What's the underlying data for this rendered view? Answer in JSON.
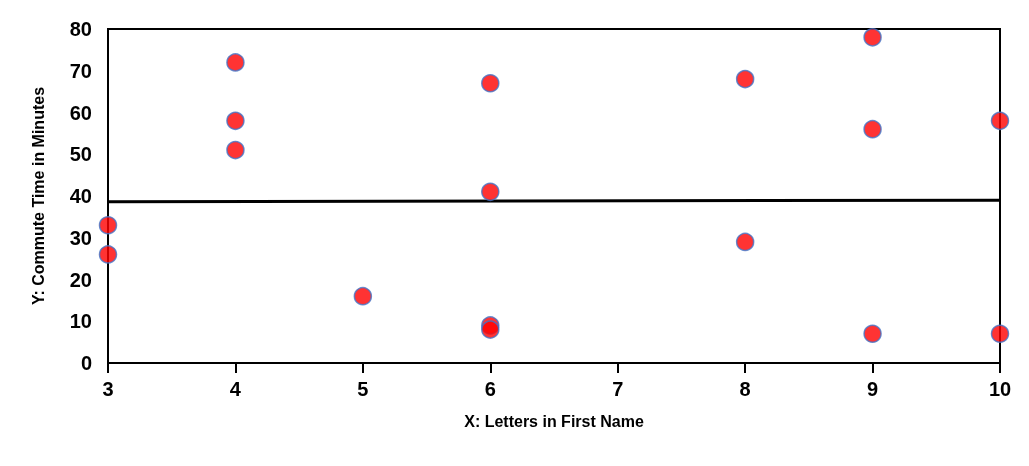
{
  "chart_data": {
    "type": "scatter",
    "xlabel": "X: Letters in First Name",
    "ylabel": "Y: Commute Time in Minutes",
    "xlim": [
      3,
      10
    ],
    "xticks": [
      3,
      4,
      5,
      6,
      7,
      8,
      9,
      10
    ],
    "ylim": [
      0,
      80
    ],
    "yticks": [
      0,
      10,
      20,
      30,
      40,
      50,
      60,
      70,
      80
    ],
    "marker": "circle",
    "series": [
      {
        "color": "#ff0000",
        "x": [
          3,
          3,
          4,
          4,
          4,
          5,
          6,
          6,
          6,
          6,
          8,
          8,
          9,
          9,
          9,
          10,
          10
        ],
        "values": [
          33,
          26,
          72,
          58,
          51,
          16,
          67,
          41,
          9,
          8,
          68,
          29,
          78,
          56,
          7,
          58,
          7
        ]
      },
      {
        "type": "line",
        "marker": "none",
        "color": "#000000",
        "x": [
          3,
          10
        ],
        "values": [
          38.6,
          39.0
        ]
      }
    ]
  }
}
